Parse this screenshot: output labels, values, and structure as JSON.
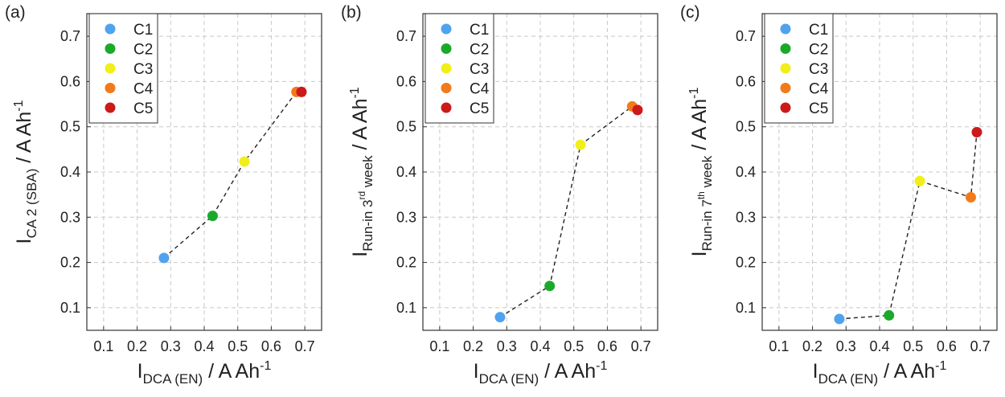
{
  "chart_data": [
    {
      "type": "scatter",
      "panel_label": "(a)",
      "xlabel_main": "I",
      "xlabel_sub": "DCA (EN)",
      "xlabel_unit": " / A Ah",
      "xlabel_sup": "-1",
      "ylabel_main": "I",
      "ylabel_sub": "CA 2 (SBA)",
      "ylabel_unit": " / A Ah",
      "ylabel_sup": "-1",
      "xlim": [
        0.05,
        0.75
      ],
      "ylim": [
        0.05,
        0.75
      ],
      "xticks": [
        "0.1",
        "0.2",
        "0.3",
        "0.4",
        "0.5",
        "0.6",
        "0.7"
      ],
      "yticks": [
        "0.1",
        "0.2",
        "0.3",
        "0.4",
        "0.5",
        "0.6",
        "0.7"
      ],
      "grid": true,
      "legend_position": "top-left",
      "connecting_line": "dashed",
      "series": [
        {
          "name": "C1",
          "color": "#4fa3ee",
          "x": 0.28,
          "y": 0.21
        },
        {
          "name": "C2",
          "color": "#1aaa2a",
          "x": 0.425,
          "y": 0.303
        },
        {
          "name": "C3",
          "color": "#f2ee1a",
          "x": 0.52,
          "y": 0.423
        },
        {
          "name": "C4",
          "color": "#f27a1a",
          "x": 0.675,
          "y": 0.577
        },
        {
          "name": "C5",
          "color": "#cc1a1a",
          "x": 0.69,
          "y": 0.577
        }
      ]
    },
    {
      "type": "scatter",
      "panel_label": "(b)",
      "xlabel_main": "I",
      "xlabel_sub": "DCA (EN)",
      "xlabel_unit": " / A Ah",
      "xlabel_sup": "-1",
      "ylabel_main": "I",
      "ylabel_sub": "Run-in 3",
      "ylabel_subsup": "rd",
      "ylabel_sub2": " week",
      "ylabel_unit": " / A Ah",
      "ylabel_sup": "-1",
      "xlim": [
        0.05,
        0.75
      ],
      "ylim": [
        0.05,
        0.75
      ],
      "xticks": [
        "0.1",
        "0.2",
        "0.3",
        "0.4",
        "0.5",
        "0.6",
        "0.7"
      ],
      "yticks": [
        "0.1",
        "0.2",
        "0.3",
        "0.4",
        "0.5",
        "0.6",
        "0.7"
      ],
      "grid": true,
      "legend_position": "top-left",
      "connecting_line": "dashed",
      "series": [
        {
          "name": "C1",
          "color": "#4fa3ee",
          "x": 0.28,
          "y": 0.079
        },
        {
          "name": "C2",
          "color": "#1aaa2a",
          "x": 0.428,
          "y": 0.148
        },
        {
          "name": "C3",
          "color": "#f2ee1a",
          "x": 0.52,
          "y": 0.46
        },
        {
          "name": "C4",
          "color": "#f27a1a",
          "x": 0.674,
          "y": 0.545
        },
        {
          "name": "C5",
          "color": "#cc1a1a",
          "x": 0.69,
          "y": 0.537
        }
      ]
    },
    {
      "type": "scatter",
      "panel_label": "(c)",
      "xlabel_main": "I",
      "xlabel_sub": "DCA (EN)",
      "xlabel_unit": " / A Ah",
      "xlabel_sup": "-1",
      "ylabel_main": "I",
      "ylabel_sub": "Run-in 7",
      "ylabel_subsup": "th",
      "ylabel_sub2": " week",
      "ylabel_unit": " / A Ah",
      "ylabel_sup": "-1",
      "xlim": [
        0.05,
        0.75
      ],
      "ylim": [
        0.05,
        0.75
      ],
      "xticks": [
        "0.1",
        "0.2",
        "0.3",
        "0.4",
        "0.5",
        "0.6",
        "0.7"
      ],
      "yticks": [
        "0.1",
        "0.2",
        "0.3",
        "0.4",
        "0.5",
        "0.6",
        "0.7"
      ],
      "grid": true,
      "legend_position": "top-left",
      "connecting_line": "dashed",
      "series": [
        {
          "name": "C1",
          "color": "#4fa3ee",
          "x": 0.28,
          "y": 0.075
        },
        {
          "name": "C2",
          "color": "#1aaa2a",
          "x": 0.428,
          "y": 0.083
        },
        {
          "name": "C3",
          "color": "#f2ee1a",
          "x": 0.52,
          "y": 0.38
        },
        {
          "name": "C4",
          "color": "#f27a1a",
          "x": 0.672,
          "y": 0.344
        },
        {
          "name": "C5",
          "color": "#cc1a1a",
          "x": 0.69,
          "y": 0.488
        }
      ]
    }
  ]
}
